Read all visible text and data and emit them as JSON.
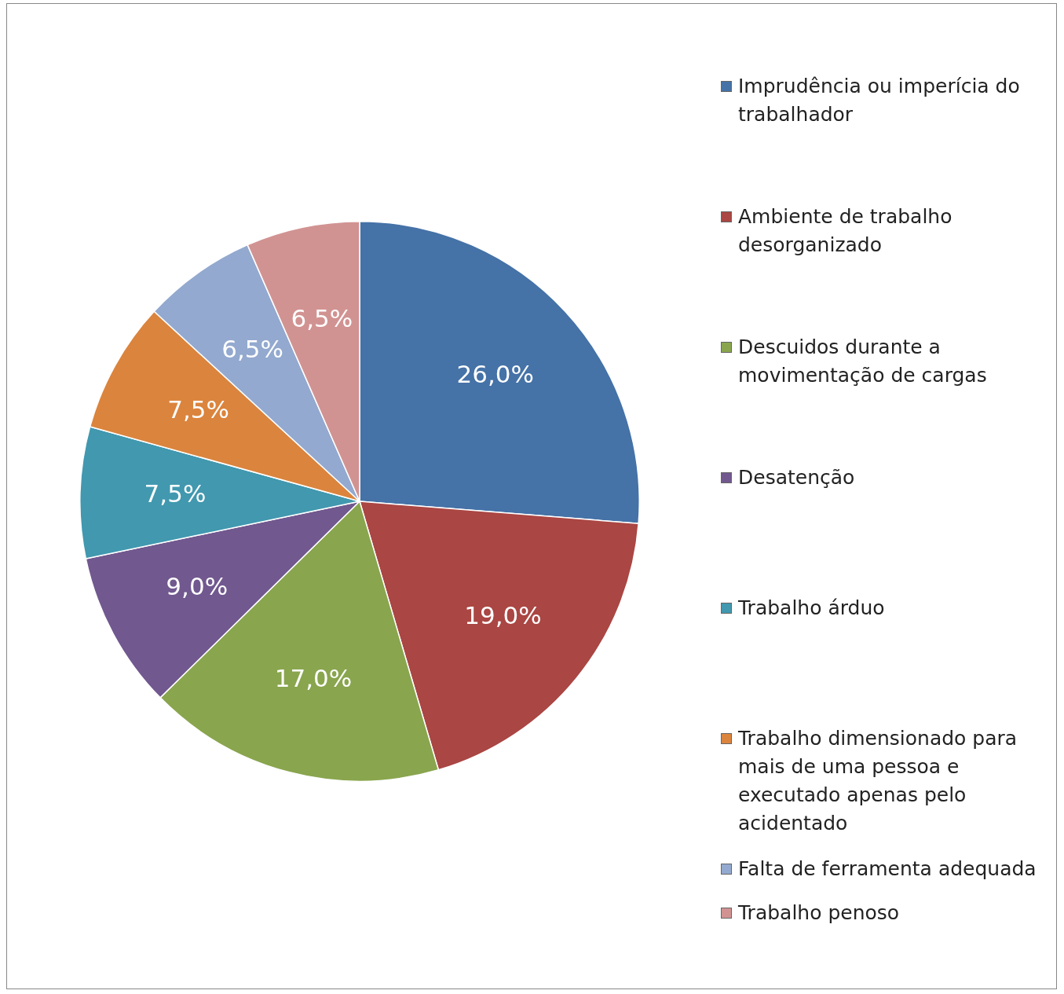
{
  "chart_data": {
    "type": "pie",
    "categories": [
      "Imprudência ou imperícia do trabalhador",
      "Ambiente de trabalho desorganizado",
      "Descuidos durante a movimentação de cargas",
      "Desatenção",
      "Trabalho árduo",
      "Trabalho dimensionado para mais de uma pessoa e executado apenas pelo acidentado",
      "Falta de ferramenta adequada",
      "Trabalho penoso"
    ],
    "values": [
      26,
      19,
      17,
      9,
      7.5,
      7.5,
      6.5,
      6.5
    ],
    "value_labels": [
      "26,0%",
      "19,0%",
      "17,0%",
      "9,0%",
      "7,5%",
      "7,5%",
      "6,5%",
      "6,5%"
    ],
    "colors": [
      "#4572a7",
      "#aa4643",
      "#89a54e",
      "#71588f",
      "#4198af",
      "#db843d",
      "#93a9cf",
      "#d19392"
    ],
    "legend": "right"
  }
}
